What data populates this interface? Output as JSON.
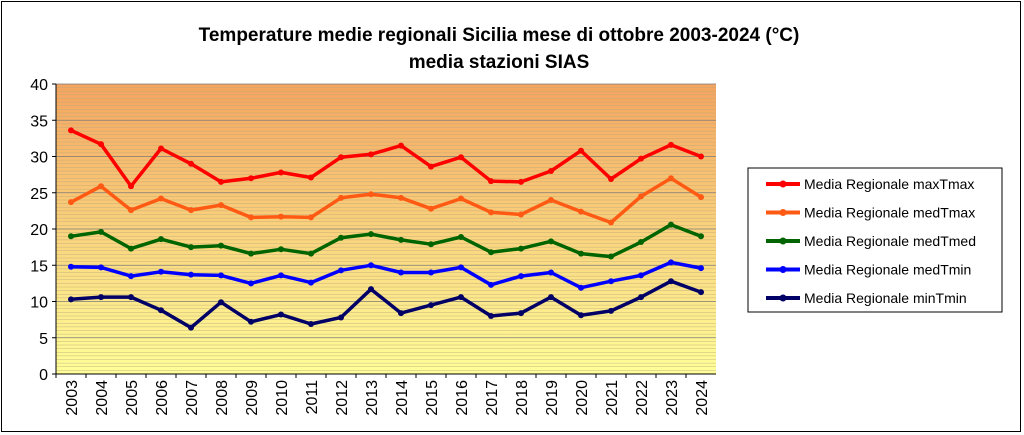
{
  "chart_data": {
    "type": "line",
    "title": "Temperature medie regionali Sicilia mese di ottobre 2003-2024 (°C)",
    "subtitle": "media stazioni SIAS",
    "xlabel": "",
    "ylabel": "",
    "ylim": [
      0,
      40
    ],
    "yticks": [
      "0",
      "5",
      "10",
      "15",
      "20",
      "25",
      "30",
      "35",
      "40"
    ],
    "categories": [
      "2003",
      "2004",
      "2005",
      "2006",
      "2007",
      "2008",
      "2009",
      "2010",
      "2011",
      "2012",
      "2013",
      "2014",
      "2015",
      "2016",
      "2017",
      "2018",
      "2019",
      "2020",
      "2021",
      "2022",
      "2023",
      "2024"
    ],
    "legend_position": "right",
    "grid": true,
    "background_gradient": [
      "#f4a460",
      "#ffff99"
    ],
    "series": [
      {
        "name": "Media Regionale maxTmax",
        "color": "#ff0000",
        "values": [
          33.6,
          31.7,
          25.9,
          31.1,
          29.0,
          26.5,
          27.0,
          27.8,
          27.1,
          29.9,
          30.3,
          31.5,
          28.6,
          29.9,
          26.6,
          26.5,
          28.0,
          30.8,
          26.9,
          29.7,
          31.6,
          30.0
        ]
      },
      {
        "name": "Media Regionale medTmax",
        "color": "#ff5a14",
        "values": [
          23.7,
          25.9,
          22.6,
          24.2,
          22.6,
          23.3,
          21.6,
          21.7,
          21.6,
          24.3,
          24.8,
          24.3,
          22.8,
          24.2,
          22.3,
          22.0,
          24.0,
          22.4,
          20.9,
          24.5,
          27.0,
          24.4
        ]
      },
      {
        "name": "Media Regionale medTmed",
        "color": "#006400",
        "values": [
          19.0,
          19.6,
          17.3,
          18.6,
          17.5,
          17.7,
          16.6,
          17.2,
          16.6,
          18.8,
          19.3,
          18.5,
          17.9,
          18.9,
          16.8,
          17.3,
          18.3,
          16.6,
          16.2,
          18.2,
          20.6,
          19.0
        ]
      },
      {
        "name": "Media Regionale medTmin",
        "color": "#0000ff",
        "values": [
          14.8,
          14.7,
          13.5,
          14.1,
          13.7,
          13.6,
          12.5,
          13.6,
          12.6,
          14.3,
          15.0,
          14.0,
          14.0,
          14.7,
          12.3,
          13.5,
          14.0,
          11.9,
          12.8,
          13.6,
          15.4,
          14.6
        ]
      },
      {
        "name": "Media Regionale minTmin",
        "color": "#000066",
        "values": [
          10.3,
          10.6,
          10.6,
          8.8,
          6.4,
          9.9,
          7.2,
          8.2,
          6.9,
          7.8,
          11.7,
          8.4,
          9.5,
          10.6,
          8.0,
          8.4,
          10.6,
          8.1,
          8.7,
          10.6,
          12.8,
          11.3
        ]
      }
    ]
  }
}
